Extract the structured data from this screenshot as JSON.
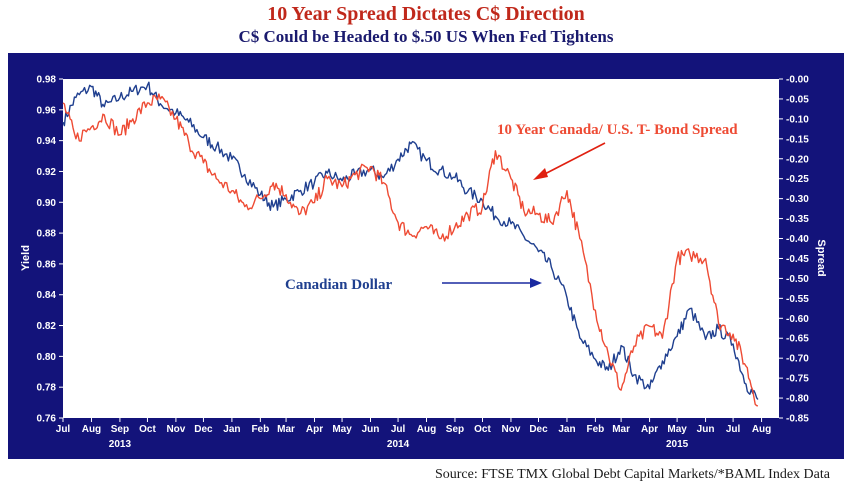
{
  "header": {
    "title": "10 Year Spread Dictates C$ Direction",
    "subtitle": "C$ Could be Headed to $.50 US When Fed Tightens"
  },
  "footer": {
    "source": "Source: FTSE TMX Global Debt Capital Markets/*BAML Index Data"
  },
  "colors": {
    "frame": "#13137a",
    "plot_bg": "#ffffff",
    "cad": "#1f3f8f",
    "spread": "#ee4b34",
    "arrow_red": "#e02010",
    "arrow_blue": "#1a2aa0"
  },
  "chart_data": {
    "type": "line",
    "title": "10 Year Spread Dictates C$ Direction",
    "subtitle": "C$ Could be Headed to $.50 US When Fed Tightens",
    "ylabel": "Yield",
    "y2label": "Spread",
    "ylim": [
      0.76,
      0.98
    ],
    "y2lim": [
      -0.85,
      0.0
    ],
    "yticks": [
      "0.76",
      "0.78",
      "0.80",
      "0.82",
      "0.84",
      "0.86",
      "0.88",
      "0.90",
      "0.92",
      "0.94",
      "0.96",
      "0.98"
    ],
    "y2ticks": [
      "-0.85",
      "-0.80",
      "-0.75",
      "-0.70",
      "-0.65",
      "-0.60",
      "-0.55",
      "-0.50",
      "-0.45",
      "-0.40",
      "-0.35",
      "-0.30",
      "-0.25",
      "-0.20",
      "-0.15",
      "-0.10",
      "-0.05",
      "-0.00"
    ],
    "xticks": [
      "Jul",
      "Aug",
      "Sep",
      "Oct",
      "Nov",
      "Dec",
      "Jan",
      "Feb",
      "Mar",
      "Apr",
      "May",
      "Jun",
      "Jul",
      "Aug",
      "Sep",
      "Oct",
      "Nov",
      "Dec",
      "Jan",
      "Feb",
      "Mar",
      "Apr",
      "May",
      "Jun",
      "Jul",
      "Aug"
    ],
    "years": [
      {
        "label": "2013",
        "month": "Sep"
      },
      {
        "label": "2014",
        "month": "Jul"
      },
      {
        "label": "2015",
        "month": "May"
      }
    ],
    "series": [
      {
        "name": "Canadian Dollar",
        "axis": "left",
        "x": [
          "2013-07",
          "2013-07-15",
          "2013-08",
          "2013-08-15",
          "2013-09",
          "2013-09-15",
          "2013-10",
          "2013-10-15",
          "2013-11",
          "2013-11-15",
          "2013-12",
          "2013-12-15",
          "2014-01",
          "2014-01-15",
          "2014-02",
          "2014-02-15",
          "2014-03",
          "2014-03-15",
          "2014-04",
          "2014-04-15",
          "2014-05",
          "2014-05-15",
          "2014-06",
          "2014-06-15",
          "2014-07",
          "2014-07-15",
          "2014-08",
          "2014-08-15",
          "2014-09",
          "2014-09-15",
          "2014-10",
          "2014-10-15",
          "2014-11",
          "2014-11-15",
          "2014-12",
          "2014-12-15",
          "2015-01",
          "2015-01-15",
          "2015-02",
          "2015-02-15",
          "2015-03",
          "2015-03-15",
          "2015-04",
          "2015-04-15",
          "2015-05",
          "2015-05-15",
          "2015-06",
          "2015-06-15",
          "2015-07",
          "2015-07-15",
          "2015-07-28"
        ],
        "values": [
          0.952,
          0.968,
          0.975,
          0.962,
          0.968,
          0.972,
          0.976,
          0.964,
          0.958,
          0.952,
          0.942,
          0.936,
          0.928,
          0.918,
          0.905,
          0.897,
          0.902,
          0.907,
          0.913,
          0.919,
          0.914,
          0.918,
          0.921,
          0.916,
          0.928,
          0.938,
          0.927,
          0.921,
          0.916,
          0.907,
          0.901,
          0.891,
          0.886,
          0.878,
          0.868,
          0.858,
          0.838,
          0.812,
          0.798,
          0.791,
          0.807,
          0.788,
          0.779,
          0.797,
          0.813,
          0.831,
          0.811,
          0.818,
          0.808,
          0.782,
          0.772
        ]
      },
      {
        "name": "10 Year Canada/ U.S. T- Bond Spread",
        "axis": "right",
        "x": [
          "2013-07",
          "2013-07-15",
          "2013-08",
          "2013-08-15",
          "2013-09",
          "2013-09-15",
          "2013-10",
          "2013-10-15",
          "2013-11",
          "2013-11-15",
          "2013-12",
          "2013-12-15",
          "2014-01",
          "2014-01-15",
          "2014-02",
          "2014-02-15",
          "2014-03",
          "2014-03-15",
          "2014-04",
          "2014-04-15",
          "2014-05",
          "2014-05-15",
          "2014-06",
          "2014-06-15",
          "2014-07",
          "2014-07-15",
          "2014-08",
          "2014-08-15",
          "2014-09",
          "2014-09-15",
          "2014-10",
          "2014-10-15",
          "2014-11",
          "2014-11-15",
          "2014-12",
          "2014-12-15",
          "2015-01",
          "2015-01-15",
          "2015-02",
          "2015-02-15",
          "2015-03",
          "2015-03-15",
          "2015-04",
          "2015-04-15",
          "2015-05",
          "2015-05-15",
          "2015-06",
          "2015-06-15",
          "2015-07",
          "2015-07-15",
          "2015-07-28"
        ],
        "values": [
          -0.06,
          -0.15,
          -0.12,
          -0.09,
          -0.14,
          -0.1,
          -0.06,
          -0.05,
          -0.1,
          -0.16,
          -0.21,
          -0.25,
          -0.28,
          -0.32,
          -0.3,
          -0.26,
          -0.29,
          -0.34,
          -0.31,
          -0.25,
          -0.27,
          -0.24,
          -0.22,
          -0.26,
          -0.36,
          -0.39,
          -0.37,
          -0.4,
          -0.37,
          -0.34,
          -0.32,
          -0.18,
          -0.25,
          -0.33,
          -0.34,
          -0.36,
          -0.28,
          -0.4,
          -0.58,
          -0.69,
          -0.78,
          -0.67,
          -0.62,
          -0.65,
          -0.45,
          -0.44,
          -0.45,
          -0.61,
          -0.64,
          -0.72,
          -0.82
        ]
      }
    ],
    "annotations": [
      {
        "text": "10 Year Canada/ U.S. T- Bond Spread",
        "color": "#ee4b34"
      },
      {
        "text": "Canadian Dollar",
        "color": "#1f3f8f"
      }
    ]
  }
}
